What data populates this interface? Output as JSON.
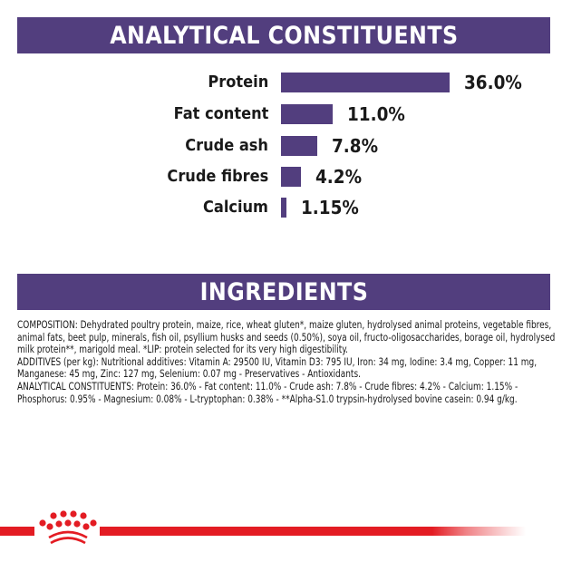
{
  "analytical_section": {
    "title": "ANALYTICAL CONSTITUENTS"
  },
  "ingredients_section": {
    "title": "INGREDIENTS",
    "composition": "COMPOSITION: Dehydrated poultry protein, maize, rice, wheat gluten*, maize gluten, hydrolysed animal proteins, vegetable fibres, animal fats, beet pulp, minerals, fish oil, psyllium husks and seeds (0.50%), soya oil, fructo-oligosaccharides, borage oil, hydrolysed milk protein**, marigold meal. *LIP: protein selected for its very high digestibility.",
    "additives": "ADDITIVES (per kg): Nutritional additives: Vitamin A: 29500 IU, Vitamin D3: 795 IU, Iron: 34 mg, Iodine: 3.4 mg, Copper: 11 mg, Manganese: 45 mg, Zinc: 127 mg, Selenium: 0.07 mg - Preservatives - Antioxidants.",
    "analytical": "ANALYTICAL CONSTITUENTS: Protein: 36.0% - Fat content: 11.0% - Crude ash: 7.8% - Crude fibres: 4.2% - Calcium: 1.15% - Phosphorus: 0.95% - Magnesium: 0.08% - L-tryptophan: 0.38% - **Alpha-S1.0 trypsin-hydrolysed bovine casein: 0.94 g/kg."
  },
  "colors": {
    "brand_purple": "#523e7e",
    "brand_red": "#e31c23",
    "text": "#1a1a1a"
  },
  "logo": {
    "icon": "crown-icon"
  },
  "chart_data": {
    "type": "bar",
    "orientation": "horizontal",
    "title": "ANALYTICAL CONSTITUENTS",
    "xlabel": "",
    "ylabel": "",
    "grid": false,
    "legend": false,
    "categories": [
      "Protein",
      "Fat content",
      "Crude ash",
      "Crude fibres",
      "Calcium"
    ],
    "values": [
      36.0,
      11.0,
      7.8,
      4.2,
      1.15
    ],
    "value_labels": [
      "36.0%",
      "11.0%",
      "7.8%",
      "4.2%",
      "1.15%"
    ],
    "unit": "%",
    "xlim": [
      0,
      36.0
    ],
    "bar_color": "#523e7e"
  }
}
